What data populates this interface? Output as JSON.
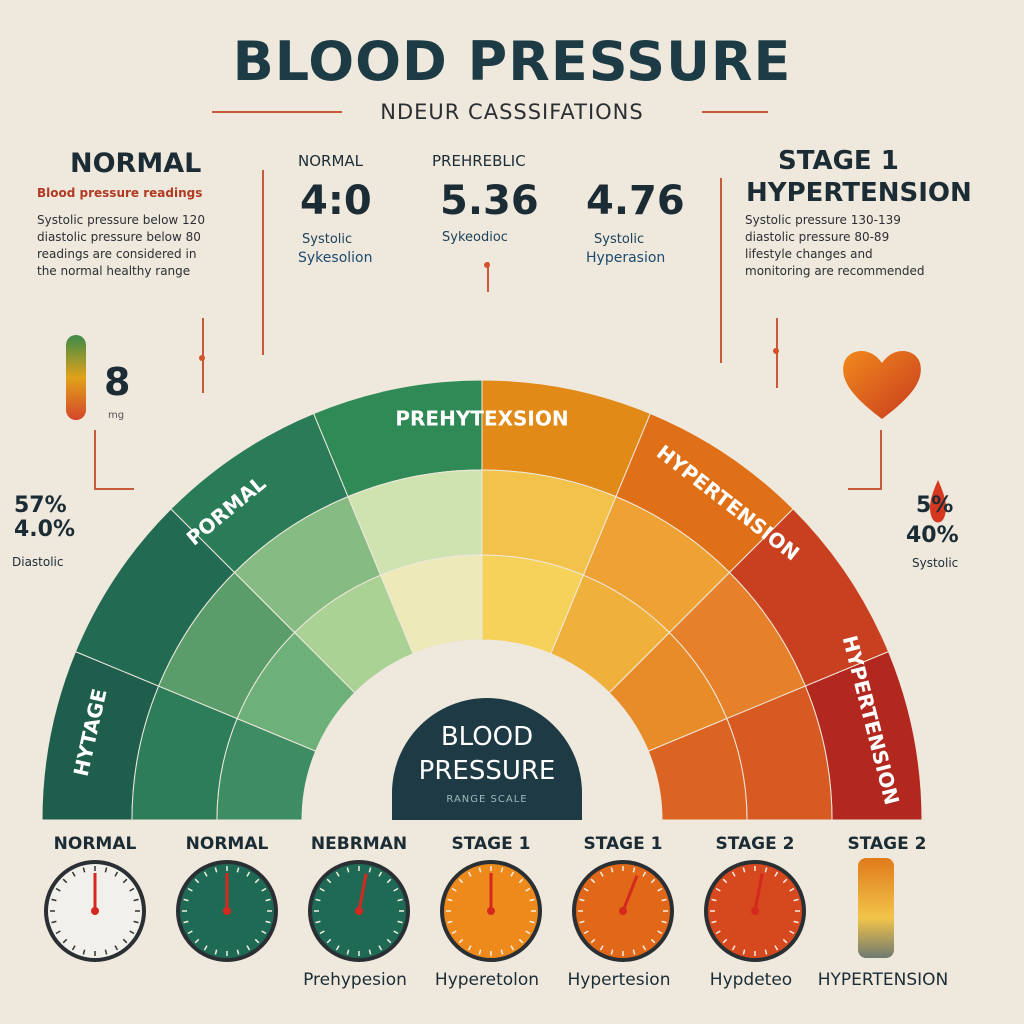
{
  "header": {
    "title": "BLOOD PRESSURE",
    "subtitle": "NDEUR CASSSIFATIONS"
  },
  "left_panel": {
    "title": "NORMAL",
    "subheading": "Blood pressure readings",
    "body": [
      "Systolic pressure below 120",
      "diastolic pressure below 80",
      "readings are considered in",
      "the normal healthy range"
    ]
  },
  "right_panel": {
    "title_line1": "STAGE 1",
    "title_line2": "HYPERTENSION",
    "body": [
      "Systolic pressure 130-139",
      "diastolic pressure 80-89",
      "lifestyle changes and",
      "monitoring are recommended"
    ]
  },
  "top_stats": [
    {
      "small": "NORMAL",
      "value": "4:0",
      "label1": "Systolic",
      "label2": "Sykesolion"
    },
    {
      "small": "PREHREBLIC",
      "value": "5.36",
      "label1": "Sykeodioc"
    },
    {
      "value": "4.76",
      "label1": "Systolic",
      "label2": "Hyperasion"
    }
  ],
  "left_side": {
    "value": "8",
    "unit": "mg"
  },
  "left_pct": {
    "line1": "57%",
    "line2": "4.0%",
    "caption": "Diastolic"
  },
  "right_pct": {
    "line1": "5%",
    "line2": "40%",
    "caption": "Systolic"
  },
  "arc": {
    "outer_labels": [
      "HYTAGE",
      "PORMAL",
      "PREHYTEXSION",
      "HYPERTENSION",
      "HYPERTENSION"
    ],
    "center_line1": "BLOOD",
    "center_line2": "PRESSURE",
    "center_sub": "RANGE SCALE",
    "colors": [
      "#1f5e4c",
      "#2a7a5a",
      "#2f8a55",
      "#e07d17",
      "#d55a1f",
      "#b8281f"
    ]
  },
  "gauges": [
    {
      "label": "NORMAL",
      "caption": "",
      "needle_level": 0.5,
      "color": "#f2f0ea"
    },
    {
      "label": "NORMAL",
      "caption": "",
      "needle_level": 0.5,
      "color": "#1f6a55"
    },
    {
      "label": "NEBRMAN",
      "caption": "Prehypesion",
      "needle_level": 0.55,
      "color": "#1f6a55"
    },
    {
      "label": "STAGE 1",
      "caption": "Hyperetolon",
      "needle_level": 0.5,
      "color": "#ee8a1c"
    },
    {
      "label": "STAGE 1",
      "caption": "Hypertesion",
      "needle_level": 0.6,
      "color": "#e06818"
    },
    {
      "label": "STAGE 2",
      "caption": "Hypdeteo",
      "needle_level": 0.55,
      "color": "#d6481d"
    },
    {
      "label": "STAGE 2",
      "caption": "HYPERTENSION",
      "needle_level": 0.0,
      "color": "#e46a1f"
    }
  ]
}
